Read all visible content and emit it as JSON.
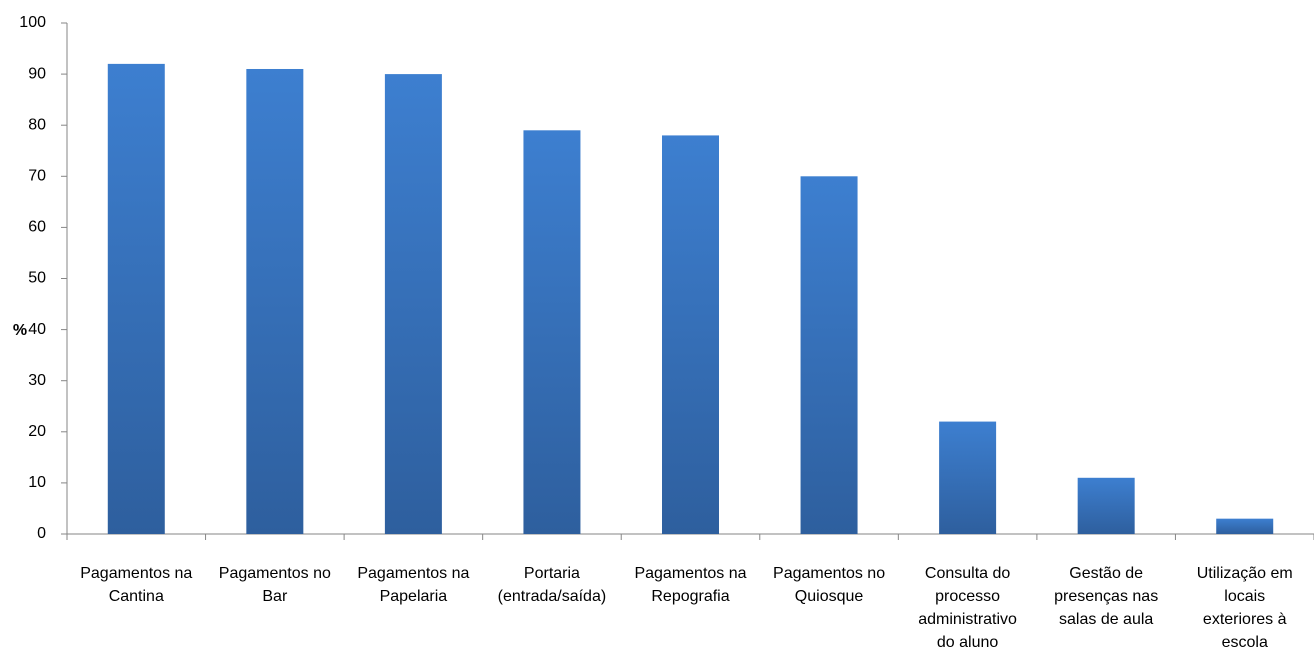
{
  "chart_data": {
    "type": "bar",
    "categories": [
      [
        "Pagamentos na",
        "Cantina"
      ],
      [
        "Pagamentos no",
        "Bar"
      ],
      [
        "Pagamentos na",
        "Papelaria"
      ],
      [
        "Portaria",
        "(entrada/saída)"
      ],
      [
        "Pagamentos na",
        "Repografia"
      ],
      [
        "Pagamentos no",
        "Quiosque"
      ],
      [
        "Consulta do",
        "processo",
        "administrativo",
        "do aluno"
      ],
      [
        "Gestão de",
        "presenças nas",
        "salas de aula"
      ],
      [
        "Utilização em",
        "locais",
        "exteriores à",
        "escola"
      ]
    ],
    "values": [
      92,
      91,
      90,
      79,
      78,
      70,
      22,
      11,
      3
    ],
    "ylabel": "%",
    "xlabel": "",
    "title": "",
    "ylim": [
      0,
      100
    ],
    "yticks": [
      0,
      10,
      20,
      30,
      40,
      50,
      60,
      70,
      80,
      90,
      100
    ],
    "grid": false,
    "legend": "none",
    "colors": {
      "bar_top": "#3D7FD0",
      "bar_bottom": "#2E5F9E",
      "axis": "#868686"
    }
  }
}
